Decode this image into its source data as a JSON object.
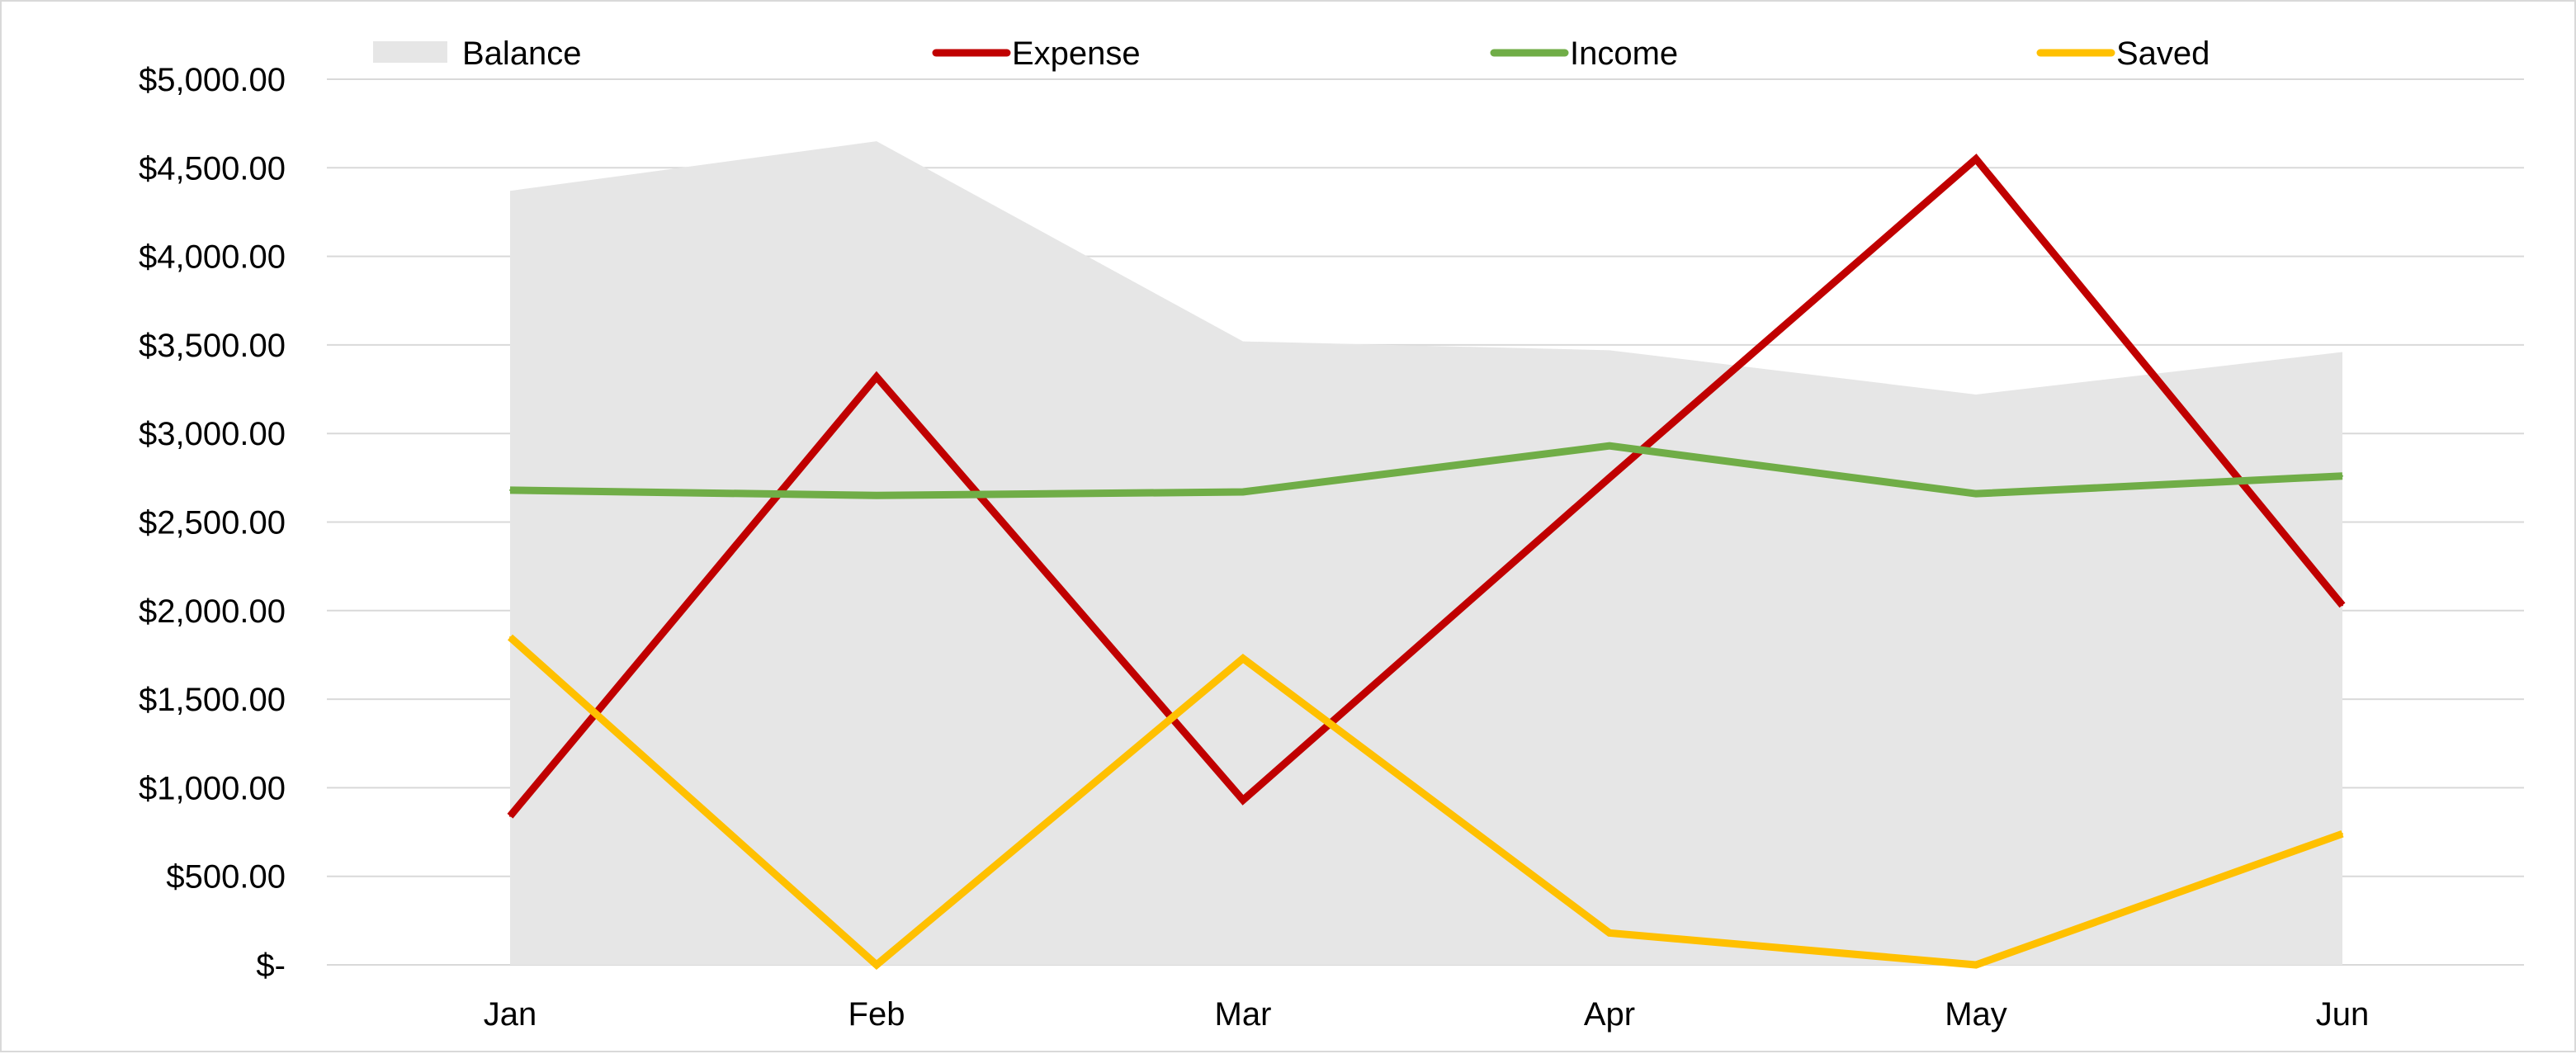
{
  "chart_data": {
    "type": "line",
    "categories": [
      "Jan",
      "Feb",
      "Mar",
      "Apr",
      "May",
      "Jun"
    ],
    "ylim": [
      0,
      5000
    ],
    "y_ticks": [
      {
        "value": 0,
        "label": "$-"
      },
      {
        "value": 500,
        "label": "$500.00"
      },
      {
        "value": 1000,
        "label": "$1,000.00"
      },
      {
        "value": 1500,
        "label": "$1,500.00"
      },
      {
        "value": 2000,
        "label": "$2,000.00"
      },
      {
        "value": 2500,
        "label": "$2,500.00"
      },
      {
        "value": 3000,
        "label": "$3,000.00"
      },
      {
        "value": 3500,
        "label": "$3,500.00"
      },
      {
        "value": 4000,
        "label": "$4,000.00"
      },
      {
        "value": 4500,
        "label": "$4,500.00"
      },
      {
        "value": 5000,
        "label": "$5,000.00"
      }
    ],
    "grid": true,
    "legend_position": "top",
    "series": [
      {
        "name": "Balance",
        "kind": "area",
        "color": "#e6e6e6",
        "values": [
          4370,
          4650,
          3520,
          3470,
          3220,
          3460
        ]
      },
      {
        "name": "Expense",
        "kind": "line",
        "color": "#c00000",
        "values": [
          840,
          3320,
          930,
          2750,
          4550,
          2030
        ]
      },
      {
        "name": "Income",
        "kind": "line",
        "color": "#70ad47",
        "values": [
          2680,
          2650,
          2670,
          2930,
          2660,
          2760
        ]
      },
      {
        "name": "Saved",
        "kind": "line",
        "color": "#ffc000",
        "values": [
          1850,
          0,
          1730,
          180,
          0,
          740
        ]
      }
    ]
  }
}
